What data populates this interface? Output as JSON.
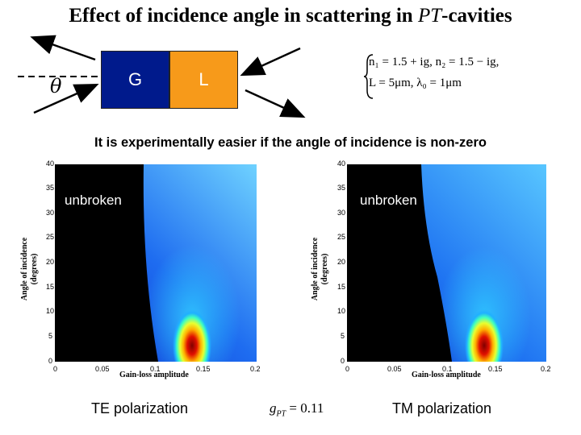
{
  "title": {
    "text": "Effect of incidence angle in scattering in ",
    "pt_symbol": "PT",
    "suffix": "-cavities"
  },
  "diagram": {
    "gain_label": "G",
    "loss_label": "L",
    "angle_symbol": "θ",
    "colors": {
      "gain": "#001a8c",
      "loss": "#f79a1a"
    }
  },
  "formula": {
    "line1": "n₁ = 1.5 + ig, n₂ = 1.5 − ig,",
    "line2": "L = 5μm, λ₀ = 1μm"
  },
  "subtitle": "It is experimentally easier if the angle of incidence is non-zero",
  "plots": [
    {
      "ylabel_line1": "Angle of incidence",
      "ylabel_line2": "(degrees)",
      "xlabel": "Gain-loss amplitude",
      "yticks": [
        "0",
        "5",
        "10",
        "15",
        "20",
        "25",
        "30",
        "35",
        "40"
      ],
      "xticks": [
        "0",
        "0.05",
        "0.1",
        "0.15",
        "0.2"
      ],
      "region_label": "unbroken",
      "caption": "TE polarization"
    },
    {
      "ylabel_line1": "Angle of incidence",
      "ylabel_line2": "(degrees)",
      "xlabel": "Gain-loss amplitude",
      "yticks": [
        "0",
        "5",
        "10",
        "15",
        "20",
        "25",
        "30",
        "35",
        "40"
      ],
      "xticks": [
        "0",
        "0.05",
        "0.1",
        "0.15",
        "0.2"
      ],
      "region_label": "unbroken",
      "caption": "TM polarization"
    }
  ],
  "gpt": {
    "symbol": "g",
    "subscript": "PT",
    "value": " = 0.11"
  }
}
